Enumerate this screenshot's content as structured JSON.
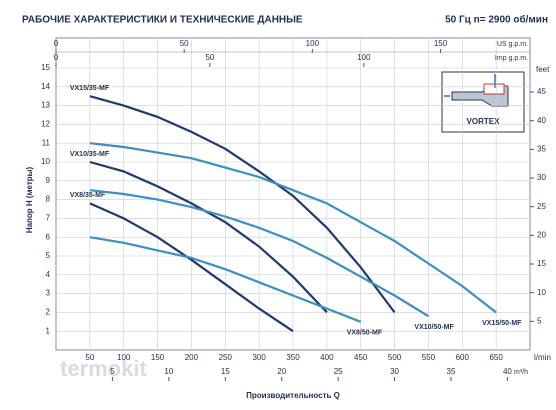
{
  "header": {
    "title": "РАБОЧИЕ ХАРАКТЕРИСТИКИ И ТЕХНИЧЕСКИЕ ДАННЫЕ",
    "subtitle": "50 Гц   n= 2900 об/мин"
  },
  "inset": {
    "label": "VORTEX"
  },
  "watermark": "termokit",
  "chart_data": {
    "type": "line",
    "x_label": "Производительность Q",
    "y_label": "Напор H (метры)",
    "x_unit": "l/min",
    "xlim": [
      0,
      700
    ],
    "xticks": [
      50,
      100,
      150,
      200,
      250,
      300,
      350,
      400,
      450,
      500,
      550,
      600,
      650
    ],
    "ylim": [
      0,
      15
    ],
    "yticks": [
      1,
      2,
      3,
      4,
      5,
      6,
      7,
      8,
      9,
      10,
      11,
      12,
      13,
      14,
      15
    ],
    "y2_unit": "feet",
    "y2lim": [
      0,
      49.2
    ],
    "y2ticks": [
      5,
      10,
      15,
      20,
      25,
      30,
      35,
      40,
      45
    ],
    "x_us_unit": "US g.p.m.",
    "x_us_lim": [
      0,
      184.9
    ],
    "x_us_ticks": [
      0,
      50,
      100,
      150
    ],
    "x_imp_unit": "Imp g.p.m.",
    "x_imp_lim": [
      0,
      154
    ],
    "x_imp_ticks": [
      0,
      50,
      100
    ],
    "x_m3h_unit": "m³/h",
    "x_m3h_lim": [
      0,
      42
    ],
    "x_m3h_ticks": [
      5,
      10,
      15,
      20,
      25,
      30,
      35,
      40
    ],
    "grid": true,
    "series": [
      {
        "name": "VX15/35-MF",
        "color": "#1f3a6e",
        "x": [
          50,
          100,
          150,
          200,
          250,
          300,
          350,
          400,
          450,
          500
        ],
        "values": [
          13.5,
          13.0,
          12.4,
          11.6,
          10.7,
          9.5,
          8.2,
          6.5,
          4.4,
          2.0
        ]
      },
      {
        "name": "VX10/35-MF",
        "color": "#1f3a6e",
        "x": [
          50,
          100,
          150,
          200,
          250,
          300,
          350,
          400
        ],
        "values": [
          10.0,
          9.5,
          8.7,
          7.8,
          6.8,
          5.5,
          3.9,
          2.0
        ]
      },
      {
        "name": "VX8/35-MF",
        "color": "#1f3a6e",
        "x": [
          50,
          100,
          150,
          200,
          250,
          300,
          350
        ],
        "values": [
          7.8,
          7.0,
          6.0,
          4.8,
          3.5,
          2.2,
          1.0
        ]
      },
      {
        "name": "VX8/50-MF",
        "color": "#3d8fc0",
        "x": [
          50,
          100,
          150,
          200,
          250,
          300,
          350,
          400,
          450
        ],
        "values": [
          6.0,
          5.7,
          5.3,
          4.9,
          4.3,
          3.6,
          2.9,
          2.2,
          1.5
        ]
      },
      {
        "name": "VX10/50-MF",
        "color": "#3d8fc0",
        "x": [
          50,
          100,
          150,
          200,
          250,
          300,
          350,
          400,
          450,
          500,
          550
        ],
        "values": [
          8.5,
          8.3,
          8.0,
          7.6,
          7.1,
          6.5,
          5.8,
          4.9,
          3.9,
          2.9,
          1.8
        ]
      },
      {
        "name": "VX15/50-MF",
        "color": "#3d8fc0",
        "x": [
          50,
          100,
          150,
          200,
          250,
          300,
          350,
          400,
          450,
          500,
          550,
          600,
          650
        ],
        "values": [
          11.0,
          10.8,
          10.5,
          10.2,
          9.7,
          9.2,
          8.5,
          7.8,
          6.8,
          5.8,
          4.6,
          3.4,
          2.0
        ]
      }
    ]
  }
}
